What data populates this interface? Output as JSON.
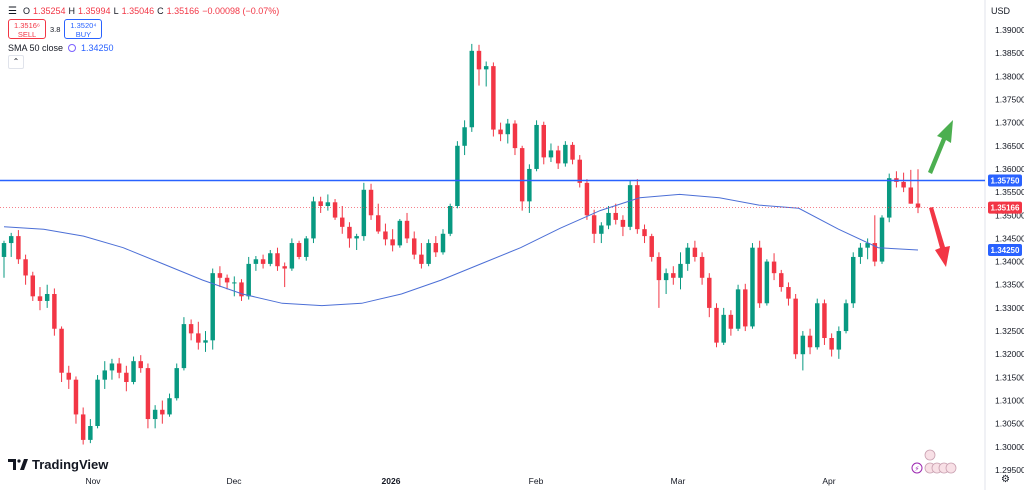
{
  "legend": {
    "open_label": "O",
    "open": "1.35254",
    "high_label": "H",
    "high": "1.35994",
    "low_label": "L",
    "low": "1.35046",
    "close_label": "C",
    "close": "1.35166",
    "change": "−0.00098 (−0.07%)",
    "sell_price": "1.3516⁶",
    "sell_label": "SELL",
    "spread": "3.8",
    "buy_price": "1.3520⁴",
    "buy_label": "BUY",
    "sma_label": "SMA 50 close",
    "sma_value": "1.34250",
    "collapse_icon": "chevron-up"
  },
  "axis": {
    "currency": "USD"
  },
  "branding": {
    "name": "TradingView"
  },
  "colors": {
    "up": "#089981",
    "down": "#f23645",
    "sma": "#4c6fd6",
    "hline": "#2962ff",
    "arrow_up": "#4caf50",
    "arrow_down": "#f23645"
  },
  "chart_data": {
    "type": "candlestick",
    "symbol_currency": "USD",
    "ylim": [
      1.295,
      1.395
    ],
    "y_ticks": [
      "1.39000",
      "1.38500",
      "1.38000",
      "1.37500",
      "1.37000",
      "1.36500",
      "1.36000",
      "1.35500",
      "1.35000",
      "1.34500",
      "1.34000",
      "1.33500",
      "1.33000",
      "1.32500",
      "1.32000",
      "1.31500",
      "1.31000",
      "1.30500",
      "1.30000",
      "1.29500"
    ],
    "x_labels": [
      "Nov",
      "Dec",
      "2026",
      "Feb",
      "Mar",
      "Apr"
    ],
    "price_labels": [
      {
        "value": 1.3575,
        "text": "1.35750",
        "kind": "horizontal-line"
      },
      {
        "value": 1.35166,
        "text": "1.35166",
        "kind": "last-price"
      },
      {
        "value": 1.3425,
        "text": "1.34250",
        "kind": "sma"
      }
    ],
    "horizontal_line": 1.3575,
    "candles": [
      {
        "o": 1.341,
        "h": 1.3445,
        "l": 1.3365,
        "c": 1.344
      },
      {
        "o": 1.344,
        "h": 1.3462,
        "l": 1.341,
        "c": 1.3455
      },
      {
        "o": 1.3455,
        "h": 1.3468,
        "l": 1.3395,
        "c": 1.3405
      },
      {
        "o": 1.3405,
        "h": 1.3415,
        "l": 1.335,
        "c": 1.337
      },
      {
        "o": 1.337,
        "h": 1.3378,
        "l": 1.3315,
        "c": 1.3325
      },
      {
        "o": 1.3325,
        "h": 1.3345,
        "l": 1.3295,
        "c": 1.3315
      },
      {
        "o": 1.3315,
        "h": 1.335,
        "l": 1.33,
        "c": 1.333
      },
      {
        "o": 1.333,
        "h": 1.3342,
        "l": 1.324,
        "c": 1.3255
      },
      {
        "o": 1.3255,
        "h": 1.326,
        "l": 1.314,
        "c": 1.316
      },
      {
        "o": 1.316,
        "h": 1.3175,
        "l": 1.3125,
        "c": 1.3145
      },
      {
        "o": 1.3145,
        "h": 1.3152,
        "l": 1.305,
        "c": 1.307
      },
      {
        "o": 1.307,
        "h": 1.3085,
        "l": 1.3005,
        "c": 1.3015
      },
      {
        "o": 1.3015,
        "h": 1.306,
        "l": 1.3008,
        "c": 1.3045
      },
      {
        "o": 1.3045,
        "h": 1.3155,
        "l": 1.304,
        "c": 1.3145
      },
      {
        "o": 1.3145,
        "h": 1.3185,
        "l": 1.3125,
        "c": 1.3165
      },
      {
        "o": 1.3165,
        "h": 1.319,
        "l": 1.3145,
        "c": 1.318
      },
      {
        "o": 1.318,
        "h": 1.3192,
        "l": 1.3148,
        "c": 1.316
      },
      {
        "o": 1.316,
        "h": 1.3175,
        "l": 1.312,
        "c": 1.314
      },
      {
        "o": 1.314,
        "h": 1.3195,
        "l": 1.3135,
        "c": 1.3185
      },
      {
        "o": 1.3185,
        "h": 1.3198,
        "l": 1.316,
        "c": 1.317
      },
      {
        "o": 1.317,
        "h": 1.318,
        "l": 1.304,
        "c": 1.306
      },
      {
        "o": 1.306,
        "h": 1.309,
        "l": 1.304,
        "c": 1.308
      },
      {
        "o": 1.308,
        "h": 1.31,
        "l": 1.305,
        "c": 1.307
      },
      {
        "o": 1.307,
        "h": 1.3115,
        "l": 1.3065,
        "c": 1.3105
      },
      {
        "o": 1.3105,
        "h": 1.318,
        "l": 1.31,
        "c": 1.317
      },
      {
        "o": 1.317,
        "h": 1.328,
        "l": 1.3165,
        "c": 1.3265
      },
      {
        "o": 1.3265,
        "h": 1.3275,
        "l": 1.323,
        "c": 1.3245
      },
      {
        "o": 1.3245,
        "h": 1.327,
        "l": 1.321,
        "c": 1.3225
      },
      {
        "o": 1.3225,
        "h": 1.325,
        "l": 1.3205,
        "c": 1.323
      },
      {
        "o": 1.323,
        "h": 1.3385,
        "l": 1.321,
        "c": 1.3375
      },
      {
        "o": 1.3375,
        "h": 1.339,
        "l": 1.3345,
        "c": 1.3365
      },
      {
        "o": 1.3365,
        "h": 1.3372,
        "l": 1.334,
        "c": 1.3355
      },
      {
        "o": 1.3355,
        "h": 1.3368,
        "l": 1.3325,
        "c": 1.3355
      },
      {
        "o": 1.3355,
        "h": 1.3362,
        "l": 1.3315,
        "c": 1.3325
      },
      {
        "o": 1.3325,
        "h": 1.341,
        "l": 1.3318,
        "c": 1.3395
      },
      {
        "o": 1.3395,
        "h": 1.3412,
        "l": 1.338,
        "c": 1.3405
      },
      {
        "o": 1.3405,
        "h": 1.3415,
        "l": 1.3385,
        "c": 1.3395
      },
      {
        "o": 1.3395,
        "h": 1.3425,
        "l": 1.339,
        "c": 1.3418
      },
      {
        "o": 1.3418,
        "h": 1.343,
        "l": 1.338,
        "c": 1.339
      },
      {
        "o": 1.339,
        "h": 1.3398,
        "l": 1.3345,
        "c": 1.3385
      },
      {
        "o": 1.3385,
        "h": 1.345,
        "l": 1.338,
        "c": 1.344
      },
      {
        "o": 1.344,
        "h": 1.3445,
        "l": 1.3405,
        "c": 1.341
      },
      {
        "o": 1.341,
        "h": 1.3455,
        "l": 1.3402,
        "c": 1.345
      },
      {
        "o": 1.345,
        "h": 1.354,
        "l": 1.344,
        "c": 1.353
      },
      {
        "o": 1.353,
        "h": 1.354,
        "l": 1.3505,
        "c": 1.352
      },
      {
        "o": 1.352,
        "h": 1.3545,
        "l": 1.351,
        "c": 1.3528
      },
      {
        "o": 1.3528,
        "h": 1.3535,
        "l": 1.349,
        "c": 1.3495
      },
      {
        "o": 1.3495,
        "h": 1.352,
        "l": 1.346,
        "c": 1.3475
      },
      {
        "o": 1.3475,
        "h": 1.3485,
        "l": 1.343,
        "c": 1.345
      },
      {
        "o": 1.345,
        "h": 1.346,
        "l": 1.3425,
        "c": 1.3455
      },
      {
        "o": 1.3455,
        "h": 1.357,
        "l": 1.3445,
        "c": 1.3555
      },
      {
        "o": 1.3555,
        "h": 1.3568,
        "l": 1.349,
        "c": 1.35
      },
      {
        "o": 1.35,
        "h": 1.3525,
        "l": 1.346,
        "c": 1.3465
      },
      {
        "o": 1.3465,
        "h": 1.3482,
        "l": 1.3435,
        "c": 1.3448
      },
      {
        "o": 1.3448,
        "h": 1.347,
        "l": 1.3422,
        "c": 1.3435
      },
      {
        "o": 1.3435,
        "h": 1.3492,
        "l": 1.343,
        "c": 1.3488
      },
      {
        "o": 1.3488,
        "h": 1.3505,
        "l": 1.344,
        "c": 1.345
      },
      {
        "o": 1.345,
        "h": 1.3465,
        "l": 1.3405,
        "c": 1.3415
      },
      {
        "o": 1.3415,
        "h": 1.344,
        "l": 1.3385,
        "c": 1.3395
      },
      {
        "o": 1.3395,
        "h": 1.3448,
        "l": 1.339,
        "c": 1.344
      },
      {
        "o": 1.344,
        "h": 1.3455,
        "l": 1.341,
        "c": 1.342
      },
      {
        "o": 1.342,
        "h": 1.347,
        "l": 1.3415,
        "c": 1.346
      },
      {
        "o": 1.346,
        "h": 1.3525,
        "l": 1.3455,
        "c": 1.352
      },
      {
        "o": 1.352,
        "h": 1.366,
        "l": 1.3515,
        "c": 1.365
      },
      {
        "o": 1.365,
        "h": 1.3705,
        "l": 1.363,
        "c": 1.369
      },
      {
        "o": 1.369,
        "h": 1.387,
        "l": 1.368,
        "c": 1.3855
      },
      {
        "o": 1.3855,
        "h": 1.3868,
        "l": 1.378,
        "c": 1.3815
      },
      {
        "o": 1.3815,
        "h": 1.3832,
        "l": 1.3778,
        "c": 1.3822
      },
      {
        "o": 1.3822,
        "h": 1.383,
        "l": 1.367,
        "c": 1.3685
      },
      {
        "o": 1.3685,
        "h": 1.37,
        "l": 1.366,
        "c": 1.3675
      },
      {
        "o": 1.3675,
        "h": 1.3708,
        "l": 1.3655,
        "c": 1.3698
      },
      {
        "o": 1.3698,
        "h": 1.3705,
        "l": 1.363,
        "c": 1.3645
      },
      {
        "o": 1.3645,
        "h": 1.365,
        "l": 1.351,
        "c": 1.353
      },
      {
        "o": 1.353,
        "h": 1.361,
        "l": 1.3505,
        "c": 1.36
      },
      {
        "o": 1.36,
        "h": 1.3705,
        "l": 1.3595,
        "c": 1.3695
      },
      {
        "o": 1.3695,
        "h": 1.3702,
        "l": 1.361,
        "c": 1.3625
      },
      {
        "o": 1.3625,
        "h": 1.3655,
        "l": 1.3615,
        "c": 1.364
      },
      {
        "o": 1.364,
        "h": 1.365,
        "l": 1.36,
        "c": 1.3612
      },
      {
        "o": 1.3612,
        "h": 1.366,
        "l": 1.3605,
        "c": 1.3652
      },
      {
        "o": 1.3652,
        "h": 1.3658,
        "l": 1.361,
        "c": 1.362
      },
      {
        "o": 1.362,
        "h": 1.363,
        "l": 1.356,
        "c": 1.357
      },
      {
        "o": 1.357,
        "h": 1.3578,
        "l": 1.349,
        "c": 1.35
      },
      {
        "o": 1.35,
        "h": 1.3512,
        "l": 1.344,
        "c": 1.346
      },
      {
        "o": 1.346,
        "h": 1.3485,
        "l": 1.344,
        "c": 1.3478
      },
      {
        "o": 1.3478,
        "h": 1.352,
        "l": 1.347,
        "c": 1.3505
      },
      {
        "o": 1.3505,
        "h": 1.3525,
        "l": 1.348,
        "c": 1.349
      },
      {
        "o": 1.349,
        "h": 1.35,
        "l": 1.3455,
        "c": 1.3475
      },
      {
        "o": 1.3475,
        "h": 1.3575,
        "l": 1.3468,
        "c": 1.3565
      },
      {
        "o": 1.3565,
        "h": 1.3578,
        "l": 1.346,
        "c": 1.347
      },
      {
        "o": 1.347,
        "h": 1.348,
        "l": 1.344,
        "c": 1.3455
      },
      {
        "o": 1.3455,
        "h": 1.346,
        "l": 1.34,
        "c": 1.341
      },
      {
        "o": 1.341,
        "h": 1.342,
        "l": 1.33,
        "c": 1.336
      },
      {
        "o": 1.336,
        "h": 1.3385,
        "l": 1.333,
        "c": 1.3375
      },
      {
        "o": 1.3375,
        "h": 1.339,
        "l": 1.335,
        "c": 1.3365
      },
      {
        "o": 1.3365,
        "h": 1.342,
        "l": 1.334,
        "c": 1.3395
      },
      {
        "o": 1.3395,
        "h": 1.344,
        "l": 1.338,
        "c": 1.343
      },
      {
        "o": 1.343,
        "h": 1.3445,
        "l": 1.34,
        "c": 1.341
      },
      {
        "o": 1.341,
        "h": 1.342,
        "l": 1.335,
        "c": 1.3365
      },
      {
        "o": 1.3365,
        "h": 1.3375,
        "l": 1.328,
        "c": 1.33
      },
      {
        "o": 1.33,
        "h": 1.331,
        "l": 1.3215,
        "c": 1.3225
      },
      {
        "o": 1.3225,
        "h": 1.33,
        "l": 1.322,
        "c": 1.3285
      },
      {
        "o": 1.3285,
        "h": 1.3295,
        "l": 1.324,
        "c": 1.3255
      },
      {
        "o": 1.3255,
        "h": 1.335,
        "l": 1.325,
        "c": 1.334
      },
      {
        "o": 1.334,
        "h": 1.3352,
        "l": 1.325,
        "c": 1.326
      },
      {
        "o": 1.326,
        "h": 1.344,
        "l": 1.3255,
        "c": 1.343
      },
      {
        "o": 1.343,
        "h": 1.3445,
        "l": 1.33,
        "c": 1.331
      },
      {
        "o": 1.331,
        "h": 1.3405,
        "l": 1.3305,
        "c": 1.34
      },
      {
        "o": 1.34,
        "h": 1.3418,
        "l": 1.336,
        "c": 1.3375
      },
      {
        "o": 1.3375,
        "h": 1.3382,
        "l": 1.3335,
        "c": 1.3345
      },
      {
        "o": 1.3345,
        "h": 1.3355,
        "l": 1.3305,
        "c": 1.332
      },
      {
        "o": 1.332,
        "h": 1.333,
        "l": 1.319,
        "c": 1.32
      },
      {
        "o": 1.32,
        "h": 1.325,
        "l": 1.3165,
        "c": 1.324
      },
      {
        "o": 1.324,
        "h": 1.3255,
        "l": 1.32,
        "c": 1.3215
      },
      {
        "o": 1.3215,
        "h": 1.332,
        "l": 1.321,
        "c": 1.331
      },
      {
        "o": 1.331,
        "h": 1.3318,
        "l": 1.322,
        "c": 1.3235
      },
      {
        "o": 1.3235,
        "h": 1.3245,
        "l": 1.3195,
        "c": 1.321
      },
      {
        "o": 1.321,
        "h": 1.326,
        "l": 1.319,
        "c": 1.325
      },
      {
        "o": 1.325,
        "h": 1.3318,
        "l": 1.3245,
        "c": 1.331
      },
      {
        "o": 1.331,
        "h": 1.342,
        "l": 1.33,
        "c": 1.341
      },
      {
        "o": 1.341,
        "h": 1.344,
        "l": 1.3395,
        "c": 1.343
      },
      {
        "o": 1.343,
        "h": 1.345,
        "l": 1.3405,
        "c": 1.344
      },
      {
        "o": 1.344,
        "h": 1.35,
        "l": 1.339,
        "c": 1.34
      },
      {
        "o": 1.34,
        "h": 1.35,
        "l": 1.3395,
        "c": 1.3495
      },
      {
        "o": 1.3495,
        "h": 1.359,
        "l": 1.3485,
        "c": 1.358
      },
      {
        "o": 1.358,
        "h": 1.3595,
        "l": 1.356,
        "c": 1.3572
      },
      {
        "o": 1.3572,
        "h": 1.3592,
        "l": 1.355,
        "c": 1.356
      },
      {
        "o": 1.356,
        "h": 1.3598,
        "l": 1.3525,
        "c": 1.3525
      },
      {
        "o": 1.35254,
        "h": 1.35994,
        "l": 1.35046,
        "c": 1.35166
      }
    ],
    "sma_50": [
      1.3475,
      1.347,
      1.3455,
      1.343,
      1.3395,
      1.336,
      1.333,
      1.331,
      1.3305,
      1.331,
      1.333,
      1.336,
      1.3395,
      1.343,
      1.3472,
      1.351,
      1.3538,
      1.3545,
      1.3538,
      1.3522,
      1.3515,
      1.347,
      1.343,
      1.3425
    ]
  }
}
